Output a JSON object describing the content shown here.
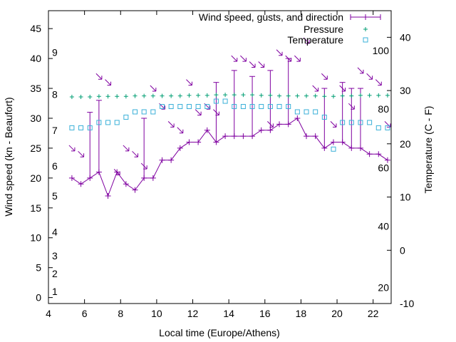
{
  "chart_data": {
    "type": "line",
    "xlabel": "Local time (Europe/Athens)",
    "ylabel": "Wind speed (kn - Beaufort)",
    "y2label": "Temperature (C - F)",
    "xlim": [
      4,
      23
    ],
    "ylim": [
      -1,
      48
    ],
    "y2lim": [
      -10,
      45
    ],
    "x_ticks": [
      4,
      6,
      8,
      10,
      12,
      14,
      16,
      18,
      20,
      22
    ],
    "y_ticks": [
      0,
      5,
      10,
      15,
      20,
      25,
      30,
      35,
      40,
      45
    ],
    "y2_ticks": [
      -10,
      0,
      10,
      20,
      30,
      40
    ],
    "beaufort_labels": [
      {
        "text": "1",
        "y": 1
      },
      {
        "text": "2",
        "y": 4
      },
      {
        "text": "3",
        "y": 7
      },
      {
        "text": "4",
        "y": 11
      },
      {
        "text": "5",
        "y": 17
      },
      {
        "text": "6",
        "y": 22
      },
      {
        "text": "7",
        "y": 28
      },
      {
        "text": "8",
        "y": 34
      },
      {
        "text": "9",
        "y": 41
      }
    ],
    "fahrenheit_labels": [
      {
        "text": "20",
        "y": -7
      },
      {
        "text": "40",
        "y": 4.5
      },
      {
        "text": "60",
        "y": 15.5
      },
      {
        "text": "80",
        "y": 26.5
      },
      {
        "text": "100",
        "y": 37.5
      }
    ],
    "legend": {
      "position": "top-right",
      "entries": [
        "Wind speed, gusts, and direction",
        "Pressure",
        "Temperature"
      ]
    },
    "colors": {
      "wind": "#7f00a0",
      "pressure": "#009e73",
      "temperature": "#3ab0d8"
    },
    "series": [
      {
        "name": "Wind speed, gusts, and direction",
        "x": [
          5.3,
          5.8,
          6.3,
          6.8,
          7.3,
          7.8,
          8.3,
          8.8,
          9.3,
          9.8,
          10.3,
          10.8,
          11.3,
          11.8,
          12.3,
          12.8,
          13.3,
          13.8,
          14.3,
          14.8,
          15.3,
          15.8,
          16.3,
          16.8,
          17.3,
          17.8,
          18.3,
          18.8,
          19.3,
          19.8,
          20.3,
          20.8,
          21.3,
          21.8,
          22.3,
          22.8
        ],
        "speed": [
          20,
          19,
          20,
          21,
          17,
          21,
          19,
          18,
          20,
          20,
          23,
          23,
          25,
          26,
          26,
          28,
          26,
          27,
          27,
          27,
          27,
          28,
          28,
          29,
          29,
          30,
          27,
          27,
          25,
          26,
          26,
          25,
          25,
          24,
          24,
          23
        ],
        "gust": [
          20,
          19,
          31,
          33,
          17,
          21,
          19,
          18,
          30,
          20,
          23,
          23,
          25,
          26,
          26,
          28,
          36,
          27,
          38,
          27,
          37,
          28,
          38,
          29,
          40,
          30,
          27,
          27,
          35,
          26,
          36,
          35,
          35,
          24,
          24,
          23
        ]
      },
      {
        "name": "Pressure",
        "x": [
          5.3,
          5.8,
          6.3,
          6.8,
          7.3,
          7.8,
          8.3,
          8.8,
          9.3,
          9.8,
          10.3,
          10.8,
          11.3,
          11.8,
          12.3,
          12.8,
          13.3,
          13.8,
          14.3,
          14.8,
          15.3,
          15.8,
          16.3,
          16.8,
          17.3,
          17.8,
          18.3,
          18.8,
          19.3,
          19.8,
          20.3,
          20.8,
          21.3,
          21.8,
          22.3,
          22.8
        ],
        "y": [
          28.8,
          28.8,
          28.8,
          28.9,
          28.9,
          28.9,
          28.9,
          29.0,
          29.0,
          29.0,
          29.0,
          29.0,
          29.0,
          29.1,
          29.1,
          29.1,
          29.2,
          29.2,
          29.2,
          29.2,
          29.2,
          29.1,
          29.1,
          29.0,
          29.0,
          29.0,
          29.0,
          29.0,
          28.9,
          28.9,
          29.0,
          29.0,
          29.1,
          29.1,
          29.1,
          29.1
        ]
      },
      {
        "name": "Temperature",
        "x": [
          5.3,
          5.8,
          6.3,
          6.8,
          7.3,
          7.8,
          8.3,
          8.8,
          9.3,
          9.8,
          10.3,
          10.8,
          11.3,
          11.8,
          12.3,
          12.8,
          13.3,
          13.8,
          14.3,
          14.8,
          15.3,
          15.8,
          16.3,
          16.8,
          17.3,
          17.8,
          18.3,
          18.8,
          19.3,
          19.8,
          20.3,
          20.8,
          21.3,
          21.8,
          22.3,
          22.8
        ],
        "y": [
          23,
          23,
          23,
          24,
          24,
          24,
          25,
          26,
          26,
          26,
          27,
          27,
          27,
          27,
          27,
          27,
          28,
          28,
          27,
          27,
          27,
          27,
          27,
          27,
          27,
          26,
          26,
          26,
          25,
          19,
          24,
          24,
          24,
          24,
          23,
          23
        ]
      }
    ],
    "wind_direction": {
      "x": [
        5.3,
        5.8,
        6.8,
        7.3,
        7.8,
        8.3,
        8.8,
        9.3,
        9.8,
        10.3,
        10.8,
        11.3,
        11.8,
        12.3,
        12.8,
        13.3,
        14.3,
        14.8,
        15.3,
        15.8,
        16.3,
        16.8,
        17.3,
        17.8,
        18.3,
        18.8,
        19.3,
        19.8,
        20.3,
        20.8,
        21.3,
        21.8,
        22.3,
        22.8
      ],
      "y": [
        25,
        24,
        37,
        36,
        21,
        25,
        24,
        22,
        35,
        32,
        29,
        28,
        36,
        31,
        32,
        31,
        40,
        40,
        39,
        39,
        29,
        41,
        40,
        40,
        43,
        35,
        37,
        29,
        35,
        32,
        38,
        37,
        36,
        29
      ],
      "heading_deg": [
        315,
        315,
        315,
        315,
        315,
        315,
        315,
        315,
        315,
        315,
        315,
        315,
        315,
        315,
        315,
        315,
        315,
        315,
        315,
        315,
        315,
        315,
        315,
        315,
        315,
        315,
        315,
        315,
        315,
        315,
        315,
        315,
        315,
        315
      ]
    }
  }
}
